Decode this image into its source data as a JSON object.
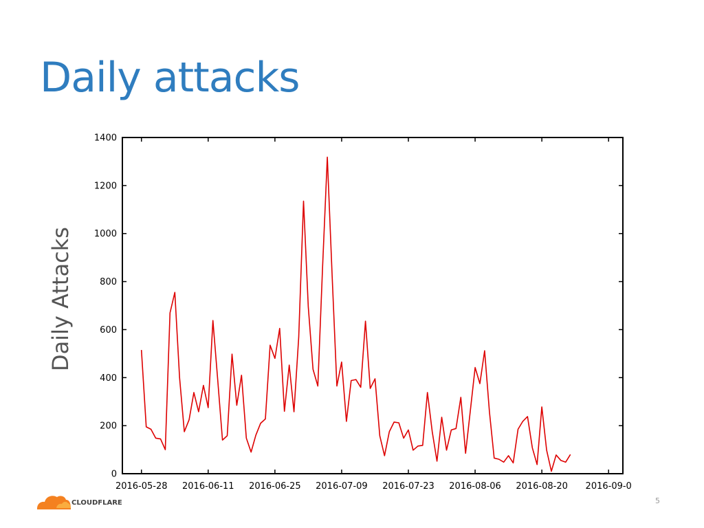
{
  "slide": {
    "title": "Daily attacks",
    "page_number": "5",
    "logo_text": "CLOUDFLARE"
  },
  "colors": {
    "title": "#2f7dbf",
    "series": "#dd0000",
    "logo_orange": "#f48120",
    "logo_orange_light": "#faad3f"
  },
  "chart_data": {
    "type": "line",
    "title": "",
    "xlabel": "",
    "ylabel": "Daily Attacks",
    "xlim": [
      "2016-05-24",
      "2016-09-06"
    ],
    "ylim": [
      0,
      1400
    ],
    "grid": false,
    "x_ticks": [
      "2016-05-28",
      "2016-06-11",
      "2016-06-25",
      "2016-07-09",
      "2016-07-23",
      "2016-08-06",
      "2016-08-20",
      "2016-09-0"
    ],
    "y_ticks": [
      "0",
      "200",
      "400",
      "600",
      "800",
      "1000",
      "1200",
      "1400"
    ],
    "y_tick_values": [
      0,
      200,
      400,
      600,
      800,
      1000,
      1200,
      1400
    ],
    "series": [
      {
        "name": "",
        "color": "#dd0000",
        "points": [
          [
            "2016-05-28",
            515
          ],
          [
            "2016-05-29",
            195
          ],
          [
            "2016-05-30",
            185
          ],
          [
            "2016-05-31",
            148
          ],
          [
            "2016-06-01",
            145
          ],
          [
            "2016-06-02",
            100
          ],
          [
            "2016-06-03",
            670
          ],
          [
            "2016-06-04",
            755
          ],
          [
            "2016-06-05",
            400
          ],
          [
            "2016-06-06",
            175
          ],
          [
            "2016-06-07",
            225
          ],
          [
            "2016-06-08",
            338
          ],
          [
            "2016-06-09",
            258
          ],
          [
            "2016-06-10",
            368
          ],
          [
            "2016-06-11",
            275
          ],
          [
            "2016-06-12",
            638
          ],
          [
            "2016-06-13",
            390
          ],
          [
            "2016-06-14",
            140
          ],
          [
            "2016-06-15",
            158
          ],
          [
            "2016-06-16",
            498
          ],
          [
            "2016-06-17",
            285
          ],
          [
            "2016-06-18",
            410
          ],
          [
            "2016-06-19",
            148
          ],
          [
            "2016-06-20",
            90
          ],
          [
            "2016-06-21",
            160
          ],
          [
            "2016-06-22",
            210
          ],
          [
            "2016-06-23",
            228
          ],
          [
            "2016-06-24",
            535
          ],
          [
            "2016-06-25",
            480
          ],
          [
            "2016-06-26",
            605
          ],
          [
            "2016-06-27",
            260
          ],
          [
            "2016-06-28",
            452
          ],
          [
            "2016-06-29",
            258
          ],
          [
            "2016-06-30",
            568
          ],
          [
            "2016-07-01",
            1135
          ],
          [
            "2016-07-02",
            695
          ],
          [
            "2016-07-03",
            435
          ],
          [
            "2016-07-04",
            365
          ],
          [
            "2016-07-05",
            860
          ],
          [
            "2016-07-06",
            1318
          ],
          [
            "2016-07-07",
            825
          ],
          [
            "2016-07-08",
            365
          ],
          [
            "2016-07-09",
            465
          ],
          [
            "2016-07-10",
            218
          ],
          [
            "2016-07-11",
            388
          ],
          [
            "2016-07-12",
            392
          ],
          [
            "2016-07-13",
            360
          ],
          [
            "2016-07-14",
            635
          ],
          [
            "2016-07-15",
            355
          ],
          [
            "2016-07-16",
            395
          ],
          [
            "2016-07-17",
            158
          ],
          [
            "2016-07-18",
            75
          ],
          [
            "2016-07-19",
            175
          ],
          [
            "2016-07-20",
            215
          ],
          [
            "2016-07-21",
            212
          ],
          [
            "2016-07-22",
            148
          ],
          [
            "2016-07-23",
            182
          ],
          [
            "2016-07-24",
            98
          ],
          [
            "2016-07-25",
            115
          ],
          [
            "2016-07-26",
            118
          ],
          [
            "2016-07-27",
            338
          ],
          [
            "2016-07-28",
            175
          ],
          [
            "2016-07-29",
            52
          ],
          [
            "2016-07-30",
            235
          ],
          [
            "2016-07-31",
            98
          ],
          [
            "2016-08-01",
            182
          ],
          [
            "2016-08-02",
            188
          ],
          [
            "2016-08-03",
            318
          ],
          [
            "2016-08-04",
            85
          ],
          [
            "2016-08-05",
            262
          ],
          [
            "2016-08-06",
            442
          ],
          [
            "2016-08-07",
            375
          ],
          [
            "2016-08-08",
            512
          ],
          [
            "2016-08-09",
            258
          ],
          [
            "2016-08-10",
            65
          ],
          [
            "2016-08-11",
            60
          ],
          [
            "2016-08-12",
            48
          ],
          [
            "2016-08-13",
            75
          ],
          [
            "2016-08-14",
            45
          ],
          [
            "2016-08-15",
            185
          ],
          [
            "2016-08-16",
            218
          ],
          [
            "2016-08-17",
            238
          ],
          [
            "2016-08-18",
            108
          ],
          [
            "2016-08-19",
            38
          ],
          [
            "2016-08-20",
            278
          ],
          [
            "2016-08-21",
            98
          ],
          [
            "2016-08-22",
            10
          ],
          [
            "2016-08-23",
            78
          ],
          [
            "2016-08-24",
            55
          ],
          [
            "2016-08-25",
            48
          ],
          [
            "2016-08-26",
            80
          ]
        ]
      }
    ]
  }
}
